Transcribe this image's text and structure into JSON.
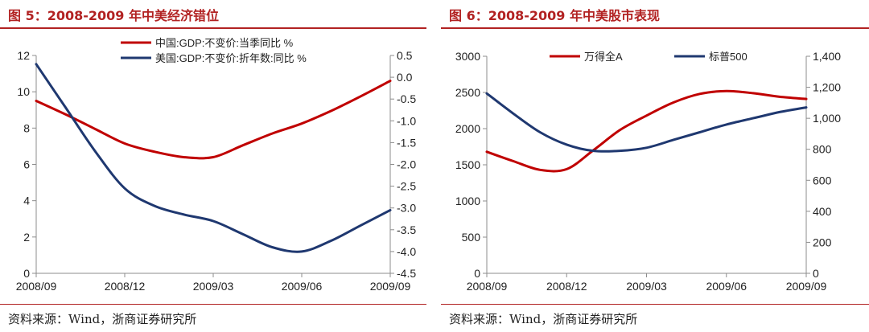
{
  "figures": [
    {
      "title": "图 5：2008-2009 年中美经济错位",
      "source": "资料来源：Wind，浙商证券研究所"
    },
    {
      "title": "图 6：2008-2009 年中美股市表现",
      "source": "资料来源：Wind，浙商证券研究所"
    }
  ],
  "chart_data": [
    {
      "type": "line",
      "x": [
        "2008/09",
        "2008/10",
        "2008/11",
        "2008/12",
        "2009/01",
        "2009/02",
        "2009/03",
        "2009/04",
        "2009/05",
        "2009/06",
        "2009/07",
        "2009/08",
        "2009/09"
      ],
      "x_tick_labels": [
        "2008/09",
        "2008/12",
        "2009/03",
        "2009/06",
        "2009/09"
      ],
      "ylim_left": [
        0,
        12
      ],
      "yticks_left": [
        "0",
        "2",
        "4",
        "6",
        "8",
        "10",
        "12"
      ],
      "ylim_right": [
        -4.5,
        0.5
      ],
      "yticks_right": [
        "-4.5",
        "-4.0",
        "-3.5",
        "-3.0",
        "-2.5",
        "-2.0",
        "-1.5",
        "-1.0",
        "-0.5",
        "0.0",
        "0.5"
      ],
      "grid": false,
      "legend_position": "top",
      "series": [
        {
          "name": "中国:GDP:不变价:当季同比 %",
          "axis": "left",
          "color": "#c00000",
          "values": [
            9.5,
            8.75,
            7.95,
            7.15,
            6.7,
            6.4,
            6.4,
            7.05,
            7.7,
            8.25,
            8.95,
            9.75,
            10.6
          ]
        },
        {
          "name": "美国:GDP:不变价:折年数:同比 %",
          "axis": "right",
          "color": "#1f3870",
          "values": [
            0.3,
            -0.7,
            -1.7,
            -2.55,
            -2.95,
            -3.15,
            -3.3,
            -3.6,
            -3.9,
            -4.0,
            -3.75,
            -3.4,
            -3.05
          ]
        }
      ]
    },
    {
      "type": "line",
      "x": [
        "2008/09",
        "2008/10",
        "2008/11",
        "2008/12",
        "2009/01",
        "2009/02",
        "2009/03",
        "2009/04",
        "2009/05",
        "2009/06",
        "2009/07",
        "2009/08",
        "2009/09"
      ],
      "x_tick_labels": [
        "2008/09",
        "2008/12",
        "2009/03",
        "2009/06",
        "2009/09"
      ],
      "ylim_left": [
        0,
        3000
      ],
      "yticks_left": [
        "0",
        "500",
        "1000",
        "1500",
        "2000",
        "2500",
        "3000"
      ],
      "ylim_right": [
        0,
        1400
      ],
      "yticks_right": [
        "0",
        "200",
        "400",
        "600",
        "800",
        "1,000",
        "1,200",
        "1,400"
      ],
      "grid": false,
      "legend_position": "top",
      "series": [
        {
          "name": "万得全A",
          "axis": "left",
          "color": "#c00000",
          "values": [
            1680,
            1550,
            1430,
            1440,
            1700,
            1980,
            2180,
            2360,
            2480,
            2520,
            2490,
            2440,
            2410
          ]
        },
        {
          "name": "标普500",
          "axis": "right",
          "color": "#1f3870",
          "values": [
            1160,
            1030,
            910,
            830,
            790,
            790,
            810,
            860,
            910,
            960,
            1000,
            1040,
            1070
          ]
        }
      ]
    }
  ]
}
